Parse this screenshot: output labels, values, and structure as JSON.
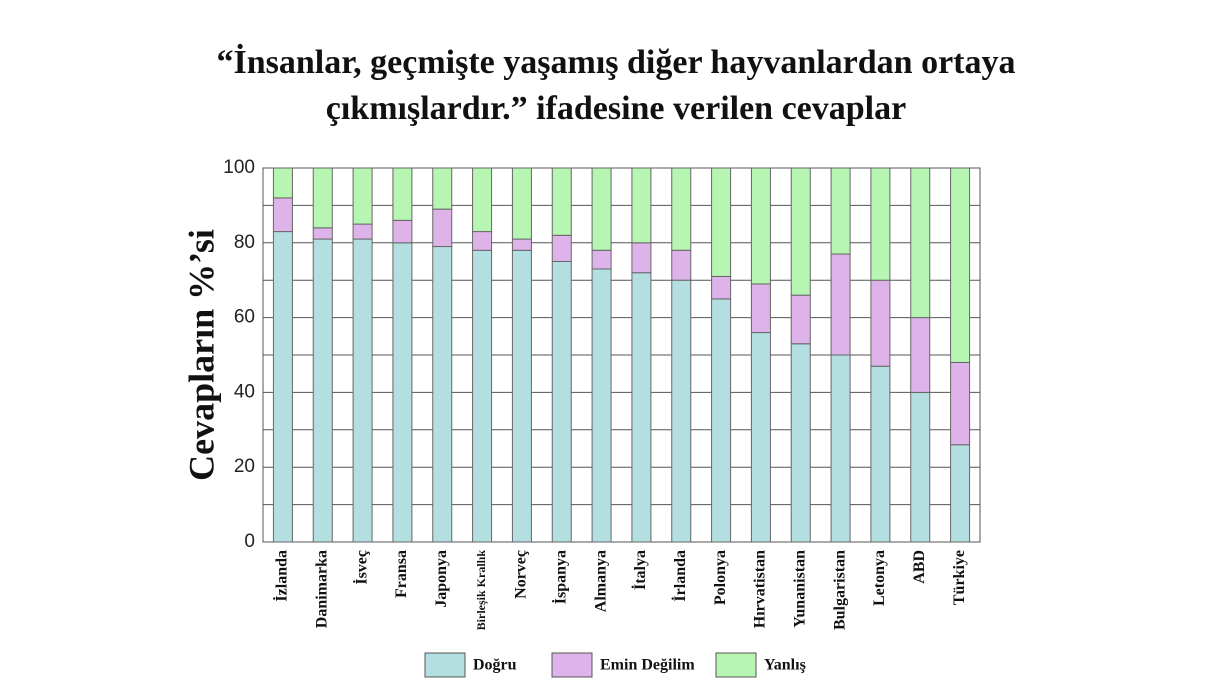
{
  "chart_data": {
    "type": "stacked_bar",
    "title": "“İnsanlar, geçmişte yaşamış diğer hayvanlardan ortaya çıkmışlardır.” ifadesine verilen cevaplar",
    "y_label": "Cevapların %’si",
    "categories": [
      "İzlanda",
      "Danimarka",
      "İsveç",
      "Fransa",
      "Japonya",
      "Birleşik Krallık",
      "Norveç",
      "İspanya",
      "Almanya",
      "İtalya",
      "İrlanda",
      "Polonya",
      "Hırvatistan",
      "Yunanistan",
      "Bulgaristan",
      "Letonya",
      "ABD",
      "Türkiye"
    ],
    "series": [
      {
        "name": "Doğru",
        "color": "#b4dfe0",
        "values": [
          83,
          81,
          81,
          80,
          79,
          78,
          78,
          75,
          73,
          72,
          70,
          65,
          56,
          53,
          50,
          47,
          40,
          26
        ]
      },
      {
        "name": "Emin Değilim",
        "color": "#ddb3ea",
        "values": [
          9,
          3,
          4,
          6,
          10,
          5,
          3,
          7,
          5,
          8,
          8,
          6,
          13,
          13,
          27,
          23,
          20,
          22
        ]
      },
      {
        "name": "Yanlış",
        "color": "#b7f5b2",
        "values": [
          8,
          16,
          15,
          14,
          11,
          17,
          19,
          18,
          22,
          20,
          22,
          29,
          31,
          34,
          23,
          30,
          40,
          52
        ]
      }
    ],
    "ylim": [
      0,
      100
    ],
    "yticks": [
      0,
      20,
      40,
      60,
      80,
      100
    ],
    "minor_gridlines": [
      10,
      30,
      50,
      70,
      90
    ],
    "grid": true
  }
}
